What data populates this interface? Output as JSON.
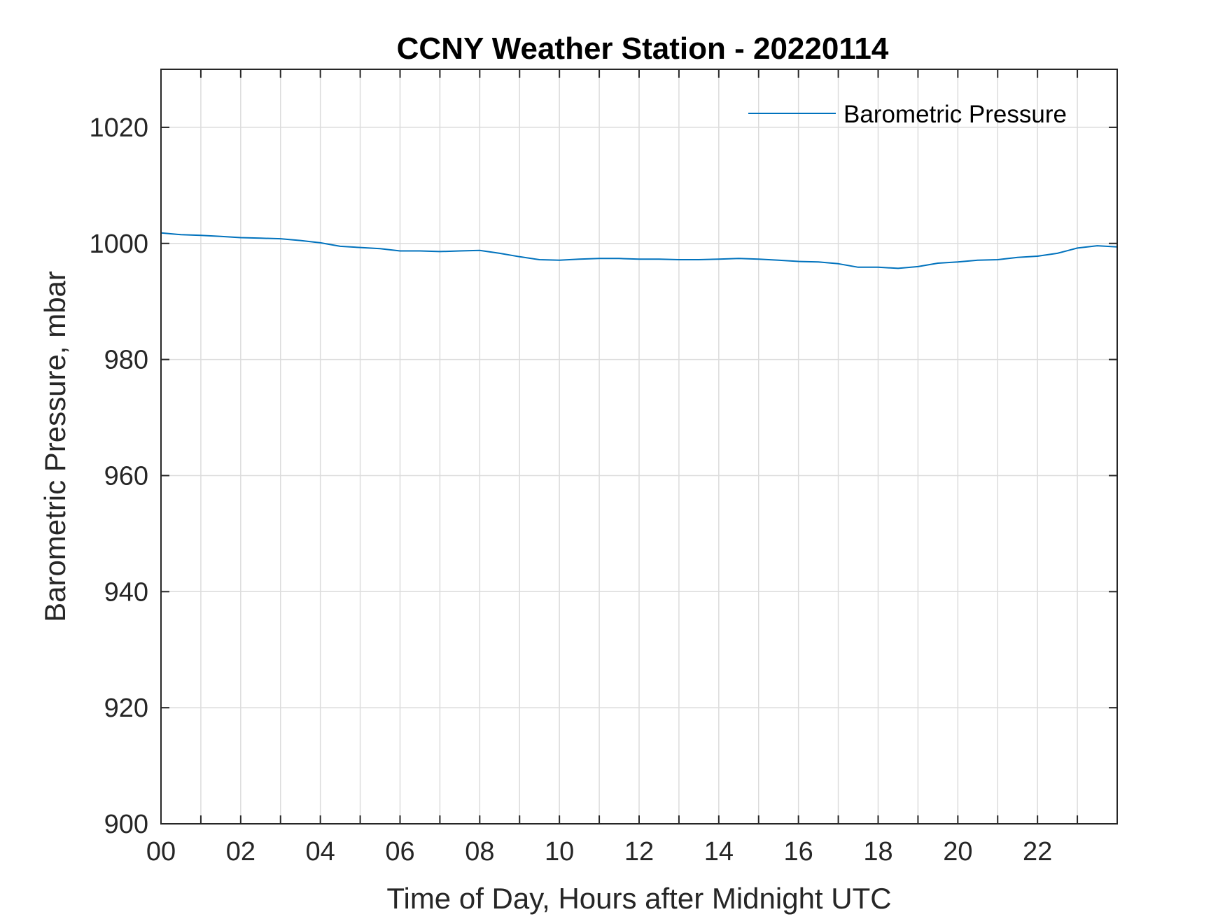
{
  "chart_data": {
    "type": "line",
    "title": "CCNY Weather Station - 20220114",
    "xlabel": "Time of Day, Hours after Midnight UTC",
    "ylabel": "Barometric Pressure, mbar",
    "xlim": [
      0,
      24
    ],
    "ylim": [
      900,
      1030
    ],
    "x_ticks": [
      0,
      2,
      4,
      6,
      8,
      10,
      12,
      14,
      16,
      18,
      20,
      22
    ],
    "x_tick_labels": [
      "00",
      "02",
      "04",
      "06",
      "08",
      "10",
      "12",
      "14",
      "16",
      "18",
      "20",
      "22"
    ],
    "x_minor_ticks": [
      1,
      3,
      5,
      7,
      9,
      11,
      13,
      15,
      17,
      19,
      21,
      23
    ],
    "y_ticks": [
      900,
      920,
      940,
      960,
      980,
      1000,
      1020
    ],
    "grid": true,
    "legend": {
      "location": "top-right"
    },
    "series": [
      {
        "name": "Barometric Pressure",
        "color": "#0072BD",
        "x": [
          0,
          0.5,
          1,
          1.5,
          2,
          2.5,
          3,
          3.5,
          4,
          4.5,
          5,
          5.5,
          6,
          6.5,
          7,
          7.5,
          8,
          8.5,
          9,
          9.5,
          10,
          10.5,
          11,
          11.5,
          12,
          12.5,
          13,
          13.5,
          14,
          14.5,
          15,
          15.5,
          16,
          16.5,
          17,
          17.5,
          18,
          18.5,
          19,
          19.5,
          20,
          20.5,
          21,
          21.5,
          22,
          22.5,
          23,
          23.5,
          24
        ],
        "y": [
          1001.8,
          1001.5,
          1001.4,
          1001.2,
          1001.0,
          1000.9,
          1000.8,
          1000.5,
          1000.1,
          999.5,
          999.3,
          999.1,
          998.7,
          998.7,
          998.6,
          998.7,
          998.8,
          998.3,
          997.7,
          997.2,
          997.1,
          997.3,
          997.4,
          997.4,
          997.3,
          997.3,
          997.2,
          997.2,
          997.3,
          997.4,
          997.3,
          997.1,
          996.9,
          996.8,
          996.5,
          995.9,
          995.9,
          995.7,
          996.0,
          996.6,
          996.8,
          997.1,
          997.2,
          997.6,
          997.8,
          998.3,
          999.2,
          999.6,
          999.4
        ]
      }
    ]
  }
}
